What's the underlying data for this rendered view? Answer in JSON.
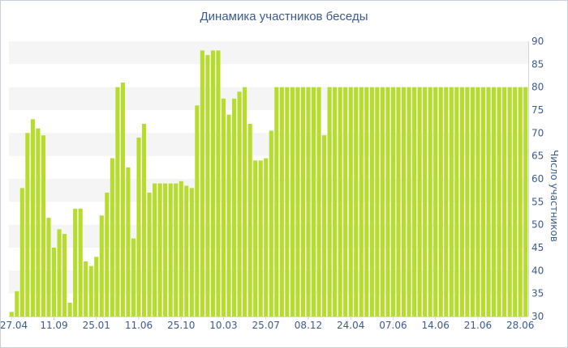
{
  "chart_data": {
    "type": "bar",
    "title": "Динамика участников беседы",
    "xlabel": "",
    "ylabel": "Число участников",
    "ylim": [
      30,
      90
    ],
    "yticks": [
      30,
      35,
      40,
      45,
      50,
      55,
      60,
      65,
      70,
      75,
      80,
      85,
      90
    ],
    "y_axis_side": "right",
    "grid": "alternating horizontal bands",
    "legend": "none",
    "x_tick_labels": [
      "27.04",
      "11.09",
      "25.01",
      "11.06",
      "25.10",
      "10.03",
      "25.07",
      "08.12",
      "24.04",
      "07.06",
      "14.06",
      "21.06",
      "28.06"
    ],
    "x_tick_positions": [
      0,
      8,
      16,
      24,
      32,
      40,
      48,
      56,
      64,
      72,
      80,
      88,
      96
    ],
    "values": [
      31,
      35.5,
      58,
      70,
      73,
      71,
      69.5,
      51.5,
      45,
      49,
      48,
      33,
      53.5,
      53.5,
      42,
      41,
      43,
      52,
      57,
      64.5,
      80,
      81,
      62.5,
      47,
      69,
      72,
      57,
      59,
      59,
      59,
      59,
      59,
      59.5,
      58.5,
      58,
      76,
      88,
      87,
      88,
      88,
      77.5,
      74,
      77.5,
      79,
      80,
      72,
      64,
      64,
      64.5,
      70.5,
      80,
      80,
      80,
      80,
      80,
      80,
      80,
      80,
      80,
      69.5,
      80,
      80,
      80,
      80,
      80,
      80,
      80,
      80,
      80,
      80,
      80,
      80,
      80,
      80,
      80,
      80,
      80,
      80,
      80,
      80,
      80,
      80,
      80,
      80,
      80,
      80,
      80,
      80,
      80,
      80,
      80,
      80,
      80,
      80,
      80,
      80,
      80,
      80
    ],
    "colors": {
      "bar": "#b6dc2c",
      "band": "#f5f5f5",
      "text": "#3c5a92",
      "axis": "#d0d6e0",
      "border": "#c9cfd9"
    }
  }
}
